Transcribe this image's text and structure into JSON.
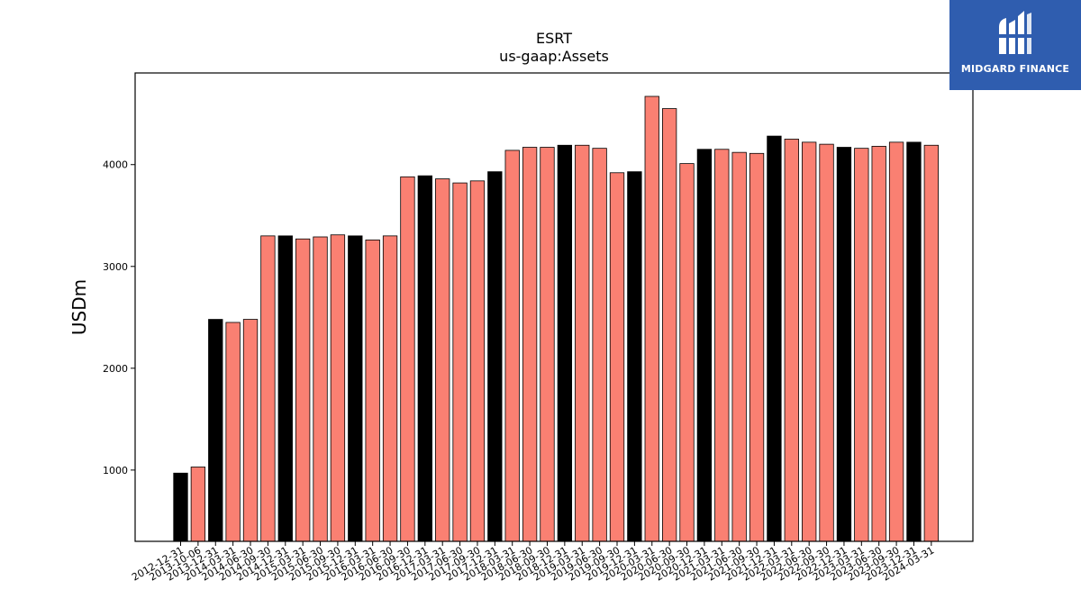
{
  "chart_data": {
    "type": "bar",
    "title": "ESRT",
    "subtitle": "us-gaap:Assets",
    "xlabel": "",
    "ylabel": "USDm",
    "ylim": [
      300,
      4900
    ],
    "yticks": [
      1000,
      2000,
      3000,
      4000
    ],
    "grid": false,
    "colors": {
      "annual": "#000000",
      "quarterly": "#fa8072",
      "edge": "#000000"
    },
    "categories": [
      "2012-12-31",
      "2013-10-06",
      "2013-12-31",
      "2014-03-31",
      "2014-06-30",
      "2014-09-30",
      "2014-12-31",
      "2015-03-31",
      "2015-06-30",
      "2015-09-30",
      "2015-12-31",
      "2016-03-31",
      "2016-06-30",
      "2016-09-30",
      "2016-12-31",
      "2017-03-31",
      "2017-06-30",
      "2017-09-30",
      "2017-12-31",
      "2018-03-31",
      "2018-06-30",
      "2018-09-30",
      "2018-12-31",
      "2019-03-31",
      "2019-06-30",
      "2019-09-30",
      "2019-12-31",
      "2020-03-31",
      "2020-06-30",
      "2020-09-30",
      "2020-12-31",
      "2021-03-31",
      "2021-06-30",
      "2021-09-30",
      "2021-12-31",
      "2022-03-31",
      "2022-06-30",
      "2022-09-30",
      "2022-12-31",
      "2023-03-31",
      "2023-06-30",
      "2023-09-30",
      "2023-12-31",
      "2024-03-31"
    ],
    "values": [
      970,
      1030,
      2480,
      2450,
      2480,
      3300,
      3300,
      3270,
      3290,
      3310,
      3300,
      3260,
      3300,
      3880,
      3890,
      3860,
      3820,
      3840,
      3930,
      4140,
      4170,
      4170,
      4190,
      4190,
      4160,
      3920,
      3930,
      4670,
      4550,
      4010,
      4150,
      4150,
      4120,
      4110,
      4280,
      4250,
      4220,
      4200,
      4170,
      4160,
      4180,
      4220,
      4220,
      4190
    ],
    "annual": [
      true,
      false,
      true,
      false,
      false,
      false,
      true,
      false,
      false,
      false,
      true,
      false,
      false,
      false,
      true,
      false,
      false,
      false,
      true,
      false,
      false,
      false,
      true,
      false,
      false,
      false,
      true,
      false,
      false,
      false,
      true,
      false,
      false,
      false,
      true,
      false,
      false,
      false,
      true,
      false,
      false,
      false,
      true,
      false
    ]
  },
  "logo": {
    "text": "MIDGARD FINANCE",
    "background": "#2f5daf"
  }
}
